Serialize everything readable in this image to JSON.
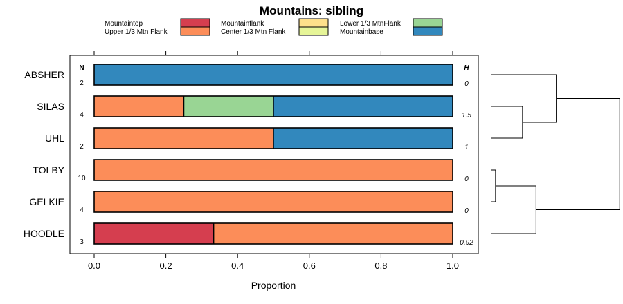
{
  "chart_data": {
    "type": "bar",
    "orientation": "horizontal-stacked",
    "title": "Mountains: sibling",
    "xlabel": "Proportion",
    "xlim": [
      0,
      1
    ],
    "xticks": [
      "0.0",
      "0.2",
      "0.4",
      "0.6",
      "0.8",
      "1.0"
    ],
    "n_header": "N",
    "h_header": "H",
    "legend": [
      {
        "key": "mountaintop",
        "label": "Mountaintop",
        "color": "#d53e4f"
      },
      {
        "key": "upper",
        "label": "Upper 1/3 Mtn Flank",
        "color": "#fc8d59"
      },
      {
        "key": "mountainflank",
        "label": "Mountainflank",
        "color": "#fee08b"
      },
      {
        "key": "center",
        "label": "Center 1/3 Mtn Flank",
        "color": "#e6f598"
      },
      {
        "key": "lower",
        "label": "Lower 1/3 MtnFlank",
        "color": "#99d594"
      },
      {
        "key": "base",
        "label": "Mountainbase",
        "color": "#3288bd"
      }
    ],
    "rows": [
      {
        "name": "ABSHER",
        "n": "2",
        "h": "0",
        "segments": {
          "base": 1.0
        }
      },
      {
        "name": "SILAS",
        "n": "4",
        "h": "1.5",
        "segments": {
          "upper": 0.25,
          "lower": 0.25,
          "base": 0.5
        }
      },
      {
        "name": "UHL",
        "n": "2",
        "h": "1",
        "segments": {
          "upper": 0.5,
          "base": 0.5
        }
      },
      {
        "name": "TOLBY",
        "n": "10",
        "h": "0",
        "segments": {
          "upper": 1.0
        }
      },
      {
        "name": "GELKIE",
        "n": "4",
        "h": "0",
        "segments": {
          "upper": 1.0
        }
      },
      {
        "name": "HOODLE",
        "n": "3",
        "h": "0.92",
        "segments": {
          "mountaintop": 0.3333,
          "upper": 0.6667
        }
      }
    ],
    "dendrogram": {
      "leaves": [
        "ABSHER",
        "SILAS",
        "UHL",
        "TOLBY",
        "GELKIE",
        "HOODLE"
      ],
      "merges": [
        {
          "left": "SILAS",
          "right": "UHL",
          "height": 0.23
        },
        {
          "left": "TOLBY",
          "right": "GELKIE",
          "height": 0.03
        },
        {
          "left": "ABSHER",
          "right": "SILAS+UHL",
          "height": 0.48
        },
        {
          "left": "TOLBY+GELKIE",
          "right": "HOODLE",
          "height": 0.33
        },
        {
          "left": "ABSHER+SILAS+UHL",
          "right": "TOLBY+GELKIE+HOODLE",
          "height": 0.95
        }
      ]
    }
  }
}
